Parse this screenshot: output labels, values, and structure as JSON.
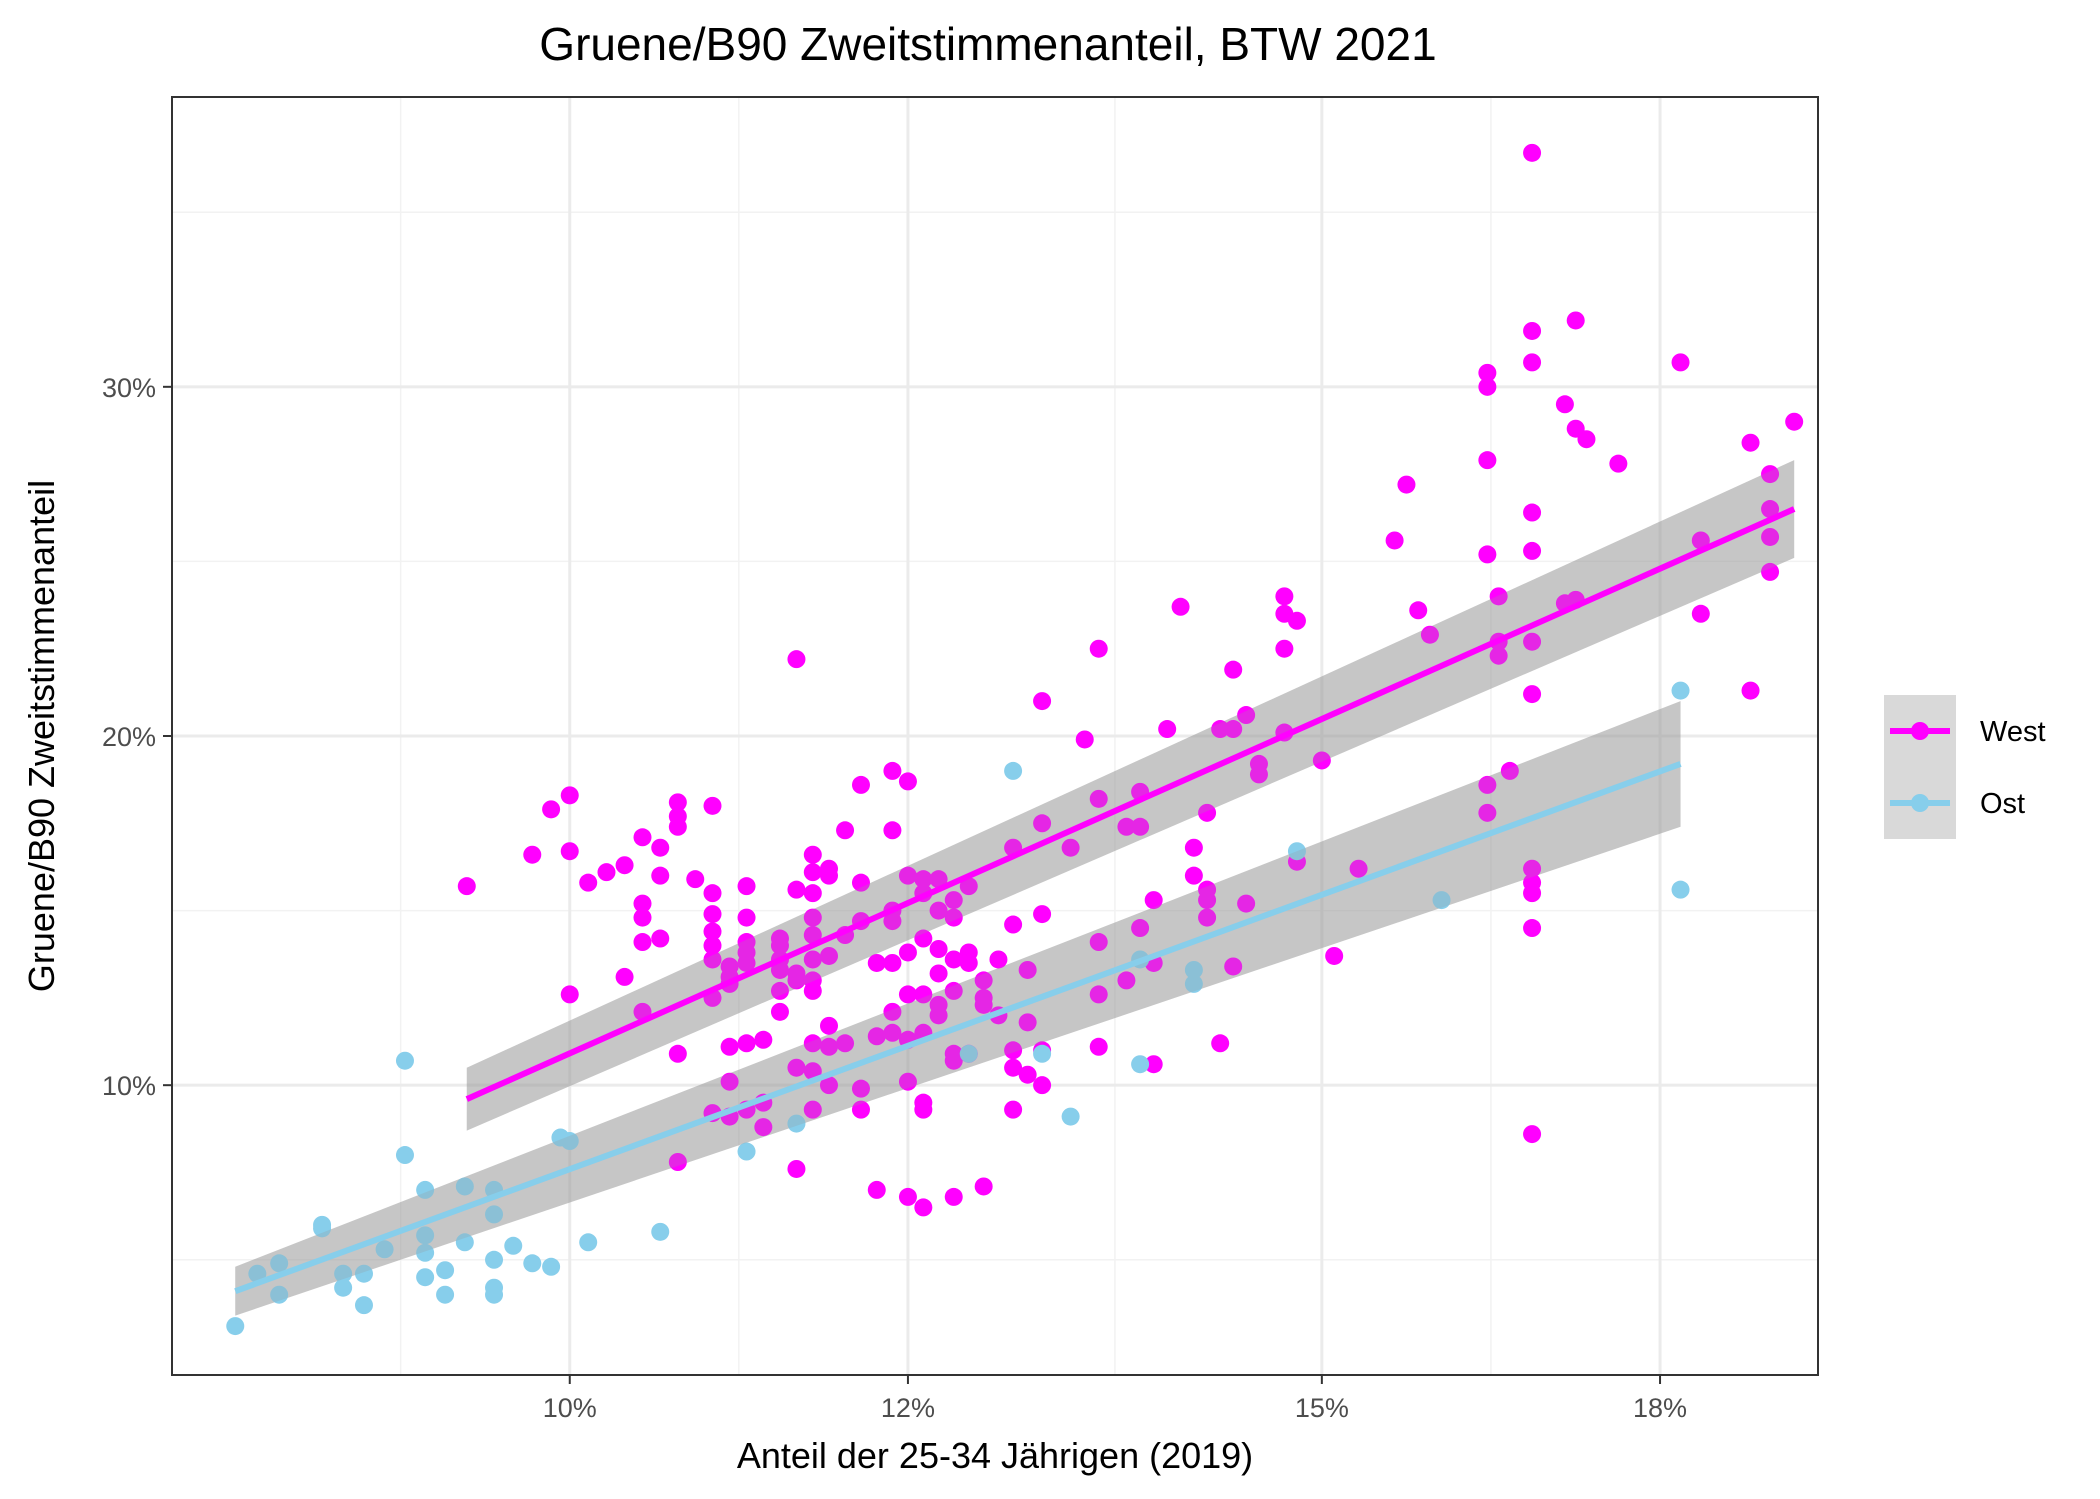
{
  "chart_data": {
    "type": "scatter",
    "title": "Gruene/B90 Zweitstimmenanteil, BTW 2021",
    "xlabel": "Anteil der 25-34 Jährigen (2019)",
    "ylabel": "Gruene/B90 Zweitstimmenanteil",
    "x_scale": "log",
    "xlim": [
      0.0807,
      0.196
    ],
    "ylim": [
      0.017,
      0.383
    ],
    "x_ticks": [
      0.1,
      0.12,
      0.15,
      0.18
    ],
    "x_tick_labels": [
      "10%",
      "12%",
      "15%",
      "18%"
    ],
    "y_ticks": [
      0.1,
      0.2,
      0.3
    ],
    "y_tick_labels": [
      "10%",
      "20%",
      "30%"
    ],
    "grid": true,
    "legend_position": "right",
    "series": [
      {
        "name": "West",
        "color": "#ff00ff",
        "fit": {
          "x": [
            0.0946,
            0.1935
          ],
          "y": [
            0.096,
            0.265
          ],
          "ci_low": [
            0.087,
            0.251
          ],
          "ci_high": [
            0.105,
            0.279
          ]
        },
        "points": [
          [
            0.0946,
            0.157
          ],
          [
            0.098,
            0.166
          ],
          [
            0.099,
            0.179
          ],
          [
            0.1,
            0.183
          ],
          [
            0.1,
            0.167
          ],
          [
            0.1,
            0.126
          ],
          [
            0.101,
            0.158
          ],
          [
            0.102,
            0.161
          ],
          [
            0.103,
            0.163
          ],
          [
            0.103,
            0.131
          ],
          [
            0.104,
            0.171
          ],
          [
            0.104,
            0.152
          ],
          [
            0.104,
            0.148
          ],
          [
            0.104,
            0.141
          ],
          [
            0.104,
            0.121
          ],
          [
            0.105,
            0.168
          ],
          [
            0.105,
            0.16
          ],
          [
            0.105,
            0.142
          ],
          [
            0.106,
            0.181
          ],
          [
            0.106,
            0.177
          ],
          [
            0.106,
            0.174
          ],
          [
            0.106,
            0.109
          ],
          [
            0.106,
            0.078
          ],
          [
            0.107,
            0.159
          ],
          [
            0.108,
            0.18
          ],
          [
            0.108,
            0.155
          ],
          [
            0.108,
            0.149
          ],
          [
            0.108,
            0.144
          ],
          [
            0.108,
            0.14
          ],
          [
            0.108,
            0.136
          ],
          [
            0.108,
            0.125
          ],
          [
            0.108,
            0.092
          ],
          [
            0.109,
            0.134
          ],
          [
            0.109,
            0.131
          ],
          [
            0.109,
            0.129
          ],
          [
            0.109,
            0.111
          ],
          [
            0.109,
            0.101
          ],
          [
            0.109,
            0.091
          ],
          [
            0.11,
            0.157
          ],
          [
            0.11,
            0.148
          ],
          [
            0.11,
            0.141
          ],
          [
            0.11,
            0.138
          ],
          [
            0.11,
            0.135
          ],
          [
            0.11,
            0.112
          ],
          [
            0.11,
            0.093
          ],
          [
            0.111,
            0.113
          ],
          [
            0.111,
            0.095
          ],
          [
            0.111,
            0.088
          ],
          [
            0.112,
            0.142
          ],
          [
            0.112,
            0.14
          ],
          [
            0.112,
            0.136
          ],
          [
            0.112,
            0.133
          ],
          [
            0.112,
            0.127
          ],
          [
            0.112,
            0.121
          ],
          [
            0.113,
            0.222
          ],
          [
            0.113,
            0.156
          ],
          [
            0.113,
            0.132
          ],
          [
            0.113,
            0.13
          ],
          [
            0.113,
            0.105
          ],
          [
            0.113,
            0.076
          ],
          [
            0.114,
            0.166
          ],
          [
            0.114,
            0.161
          ],
          [
            0.114,
            0.155
          ],
          [
            0.114,
            0.148
          ],
          [
            0.114,
            0.143
          ],
          [
            0.114,
            0.136
          ],
          [
            0.114,
            0.13
          ],
          [
            0.114,
            0.127
          ],
          [
            0.114,
            0.112
          ],
          [
            0.114,
            0.104
          ],
          [
            0.114,
            0.093
          ],
          [
            0.115,
            0.162
          ],
          [
            0.115,
            0.16
          ],
          [
            0.115,
            0.137
          ],
          [
            0.115,
            0.117
          ],
          [
            0.115,
            0.111
          ],
          [
            0.115,
            0.1
          ],
          [
            0.116,
            0.173
          ],
          [
            0.116,
            0.143
          ],
          [
            0.116,
            0.112
          ],
          [
            0.117,
            0.186
          ],
          [
            0.117,
            0.158
          ],
          [
            0.117,
            0.147
          ],
          [
            0.117,
            0.099
          ],
          [
            0.117,
            0.093
          ],
          [
            0.118,
            0.135
          ],
          [
            0.118,
            0.114
          ],
          [
            0.118,
            0.07
          ],
          [
            0.119,
            0.19
          ],
          [
            0.119,
            0.173
          ],
          [
            0.119,
            0.15
          ],
          [
            0.119,
            0.147
          ],
          [
            0.119,
            0.135
          ],
          [
            0.119,
            0.121
          ],
          [
            0.119,
            0.115
          ],
          [
            0.12,
            0.187
          ],
          [
            0.12,
            0.16
          ],
          [
            0.12,
            0.138
          ],
          [
            0.12,
            0.126
          ],
          [
            0.12,
            0.113
          ],
          [
            0.12,
            0.101
          ],
          [
            0.12,
            0.068
          ],
          [
            0.121,
            0.159
          ],
          [
            0.121,
            0.155
          ],
          [
            0.121,
            0.142
          ],
          [
            0.121,
            0.126
          ],
          [
            0.121,
            0.115
          ],
          [
            0.121,
            0.095
          ],
          [
            0.121,
            0.093
          ],
          [
            0.121,
            0.065
          ],
          [
            0.122,
            0.159
          ],
          [
            0.122,
            0.15
          ],
          [
            0.122,
            0.139
          ],
          [
            0.122,
            0.132
          ],
          [
            0.122,
            0.123
          ],
          [
            0.122,
            0.12
          ],
          [
            0.123,
            0.153
          ],
          [
            0.123,
            0.148
          ],
          [
            0.123,
            0.136
          ],
          [
            0.123,
            0.127
          ],
          [
            0.123,
            0.109
          ],
          [
            0.123,
            0.107
          ],
          [
            0.123,
            0.068
          ],
          [
            0.124,
            0.157
          ],
          [
            0.124,
            0.138
          ],
          [
            0.124,
            0.135
          ],
          [
            0.124,
            0.109
          ],
          [
            0.125,
            0.13
          ],
          [
            0.125,
            0.125
          ],
          [
            0.125,
            0.123
          ],
          [
            0.125,
            0.071
          ],
          [
            0.126,
            0.136
          ],
          [
            0.126,
            0.12
          ],
          [
            0.127,
            0.168
          ],
          [
            0.127,
            0.146
          ],
          [
            0.127,
            0.11
          ],
          [
            0.127,
            0.105
          ],
          [
            0.127,
            0.093
          ],
          [
            0.128,
            0.133
          ],
          [
            0.128,
            0.118
          ],
          [
            0.128,
            0.103
          ],
          [
            0.129,
            0.21
          ],
          [
            0.129,
            0.175
          ],
          [
            0.129,
            0.149
          ],
          [
            0.129,
            0.11
          ],
          [
            0.129,
            0.1
          ],
          [
            0.131,
            0.168
          ],
          [
            0.132,
            0.199
          ],
          [
            0.133,
            0.225
          ],
          [
            0.133,
            0.182
          ],
          [
            0.133,
            0.141
          ],
          [
            0.133,
            0.126
          ],
          [
            0.133,
            0.111
          ],
          [
            0.135,
            0.174
          ],
          [
            0.135,
            0.13
          ],
          [
            0.136,
            0.184
          ],
          [
            0.136,
            0.174
          ],
          [
            0.136,
            0.145
          ],
          [
            0.137,
            0.153
          ],
          [
            0.137,
            0.135
          ],
          [
            0.137,
            0.106
          ],
          [
            0.138,
            0.202
          ],
          [
            0.139,
            0.237
          ],
          [
            0.14,
            0.168
          ],
          [
            0.14,
            0.16
          ],
          [
            0.141,
            0.178
          ],
          [
            0.141,
            0.156
          ],
          [
            0.141,
            0.153
          ],
          [
            0.141,
            0.148
          ],
          [
            0.142,
            0.202
          ],
          [
            0.142,
            0.112
          ],
          [
            0.143,
            0.219
          ],
          [
            0.143,
            0.202
          ],
          [
            0.143,
            0.134
          ],
          [
            0.144,
            0.206
          ],
          [
            0.144,
            0.152
          ],
          [
            0.145,
            0.192
          ],
          [
            0.145,
            0.189
          ],
          [
            0.147,
            0.24
          ],
          [
            0.147,
            0.235
          ],
          [
            0.147,
            0.225
          ],
          [
            0.147,
            0.201
          ],
          [
            0.148,
            0.233
          ],
          [
            0.148,
            0.164
          ],
          [
            0.15,
            0.193
          ],
          [
            0.151,
            0.137
          ],
          [
            0.153,
            0.162
          ],
          [
            0.156,
            0.256
          ],
          [
            0.157,
            0.272
          ],
          [
            0.158,
            0.236
          ],
          [
            0.159,
            0.229
          ],
          [
            0.164,
            0.304
          ],
          [
            0.164,
            0.3
          ],
          [
            0.164,
            0.279
          ],
          [
            0.164,
            0.252
          ],
          [
            0.164,
            0.186
          ],
          [
            0.164,
            0.178
          ],
          [
            0.165,
            0.24
          ],
          [
            0.165,
            0.227
          ],
          [
            0.165,
            0.223
          ],
          [
            0.166,
            0.19
          ],
          [
            0.168,
            0.367
          ],
          [
            0.168,
            0.316
          ],
          [
            0.168,
            0.307
          ],
          [
            0.168,
            0.264
          ],
          [
            0.168,
            0.253
          ],
          [
            0.168,
            0.227
          ],
          [
            0.168,
            0.212
          ],
          [
            0.168,
            0.162
          ],
          [
            0.168,
            0.155
          ],
          [
            0.168,
            0.158
          ],
          [
            0.168,
            0.145
          ],
          [
            0.168,
            0.086
          ],
          [
            0.171,
            0.295
          ],
          [
            0.171,
            0.238
          ],
          [
            0.172,
            0.319
          ],
          [
            0.172,
            0.288
          ],
          [
            0.172,
            0.239
          ],
          [
            0.173,
            0.285
          ],
          [
            0.176,
            0.278
          ],
          [
            0.182,
            0.307
          ],
          [
            0.184,
            0.256
          ],
          [
            0.184,
            0.235
          ],
          [
            0.189,
            0.284
          ],
          [
            0.189,
            0.213
          ],
          [
            0.191,
            0.275
          ],
          [
            0.191,
            0.265
          ],
          [
            0.191,
            0.257
          ],
          [
            0.191,
            0.247
          ],
          [
            0.1935,
            0.29
          ]
        ]
      },
      {
        "name": "Ost",
        "color": "#87ceeb",
        "fit": {
          "x": [
            0.0835,
            0.182
          ],
          "y": [
            0.041,
            0.192
          ],
          "ci_low": [
            0.034,
            0.174
          ],
          "ci_high": [
            0.048,
            0.21
          ]
        },
        "points": [
          [
            0.0835,
            0.031
          ],
          [
            0.0845,
            0.046
          ],
          [
            0.0855,
            0.049
          ],
          [
            0.0855,
            0.04
          ],
          [
            0.0875,
            0.06
          ],
          [
            0.0875,
            0.059
          ],
          [
            0.0885,
            0.046
          ],
          [
            0.0885,
            0.042
          ],
          [
            0.0895,
            0.046
          ],
          [
            0.0895,
            0.037
          ],
          [
            0.0905,
            0.053
          ],
          [
            0.0915,
            0.107
          ],
          [
            0.0915,
            0.08
          ],
          [
            0.0925,
            0.07
          ],
          [
            0.0925,
            0.057
          ],
          [
            0.0925,
            0.052
          ],
          [
            0.0925,
            0.045
          ],
          [
            0.0935,
            0.047
          ],
          [
            0.0935,
            0.04
          ],
          [
            0.0945,
            0.071
          ],
          [
            0.0945,
            0.055
          ],
          [
            0.096,
            0.07
          ],
          [
            0.096,
            0.063
          ],
          [
            0.096,
            0.05
          ],
          [
            0.096,
            0.042
          ],
          [
            0.096,
            0.04
          ],
          [
            0.097,
            0.054
          ],
          [
            0.098,
            0.049
          ],
          [
            0.099,
            0.048
          ],
          [
            0.0995,
            0.085
          ],
          [
            0.1,
            0.084
          ],
          [
            0.101,
            0.055
          ],
          [
            0.105,
            0.058
          ],
          [
            0.11,
            0.081
          ],
          [
            0.113,
            0.089
          ],
          [
            0.124,
            0.109
          ],
          [
            0.127,
            0.19
          ],
          [
            0.129,
            0.109
          ],
          [
            0.131,
            0.091
          ],
          [
            0.136,
            0.136
          ],
          [
            0.136,
            0.106
          ],
          [
            0.14,
            0.129
          ],
          [
            0.14,
            0.133
          ],
          [
            0.148,
            0.167
          ],
          [
            0.16,
            0.153
          ],
          [
            0.182,
            0.213
          ],
          [
            0.182,
            0.156
          ]
        ]
      }
    ]
  }
}
